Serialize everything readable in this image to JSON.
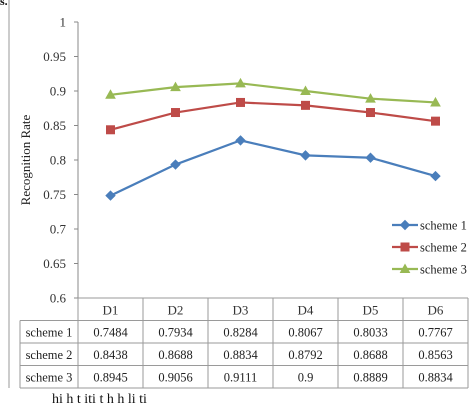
{
  "fragments": {
    "top_left": "s.",
    "caption": "hi h t          iti        t        h h      li    ti"
  },
  "chart_data": {
    "type": "line",
    "ylabel": "Recognition Rate",
    "ylim": [
      0.6,
      1.0
    ],
    "yticks": [
      "0.6",
      "0.65",
      "0.7",
      "0.75",
      "0.8",
      "0.85",
      "0.9",
      "0.95",
      "1"
    ],
    "categories": [
      "D1",
      "D2",
      "D3",
      "D4",
      "D5",
      "D6"
    ],
    "grid": false,
    "legend_position": "right",
    "series": [
      {
        "name": "scheme 1",
        "color": "#4a7ebb",
        "marker": "diamond",
        "values": [
          0.7484,
          0.7934,
          0.8284,
          0.8067,
          0.8033,
          0.7767
        ],
        "table": [
          "0.7484",
          "0.7934",
          "0.8284",
          "0.8067",
          "0.8033",
          "0.7767"
        ]
      },
      {
        "name": "scheme 2",
        "color": "#be4b48",
        "marker": "square",
        "values": [
          0.8438,
          0.8688,
          0.8834,
          0.8792,
          0.8688,
          0.8563
        ],
        "table": [
          "0.8438",
          "0.8688",
          "0.8834",
          "0.8792",
          "0.8688",
          "0.8563"
        ]
      },
      {
        "name": "scheme 3",
        "color": "#98b954",
        "marker": "triangle",
        "values": [
          0.8945,
          0.9056,
          0.9111,
          0.9,
          0.8889,
          0.8834
        ],
        "table": [
          "0.8945",
          "0.9056",
          "0.9111",
          "0.9",
          "0.8889",
          "0.8834"
        ]
      }
    ]
  }
}
